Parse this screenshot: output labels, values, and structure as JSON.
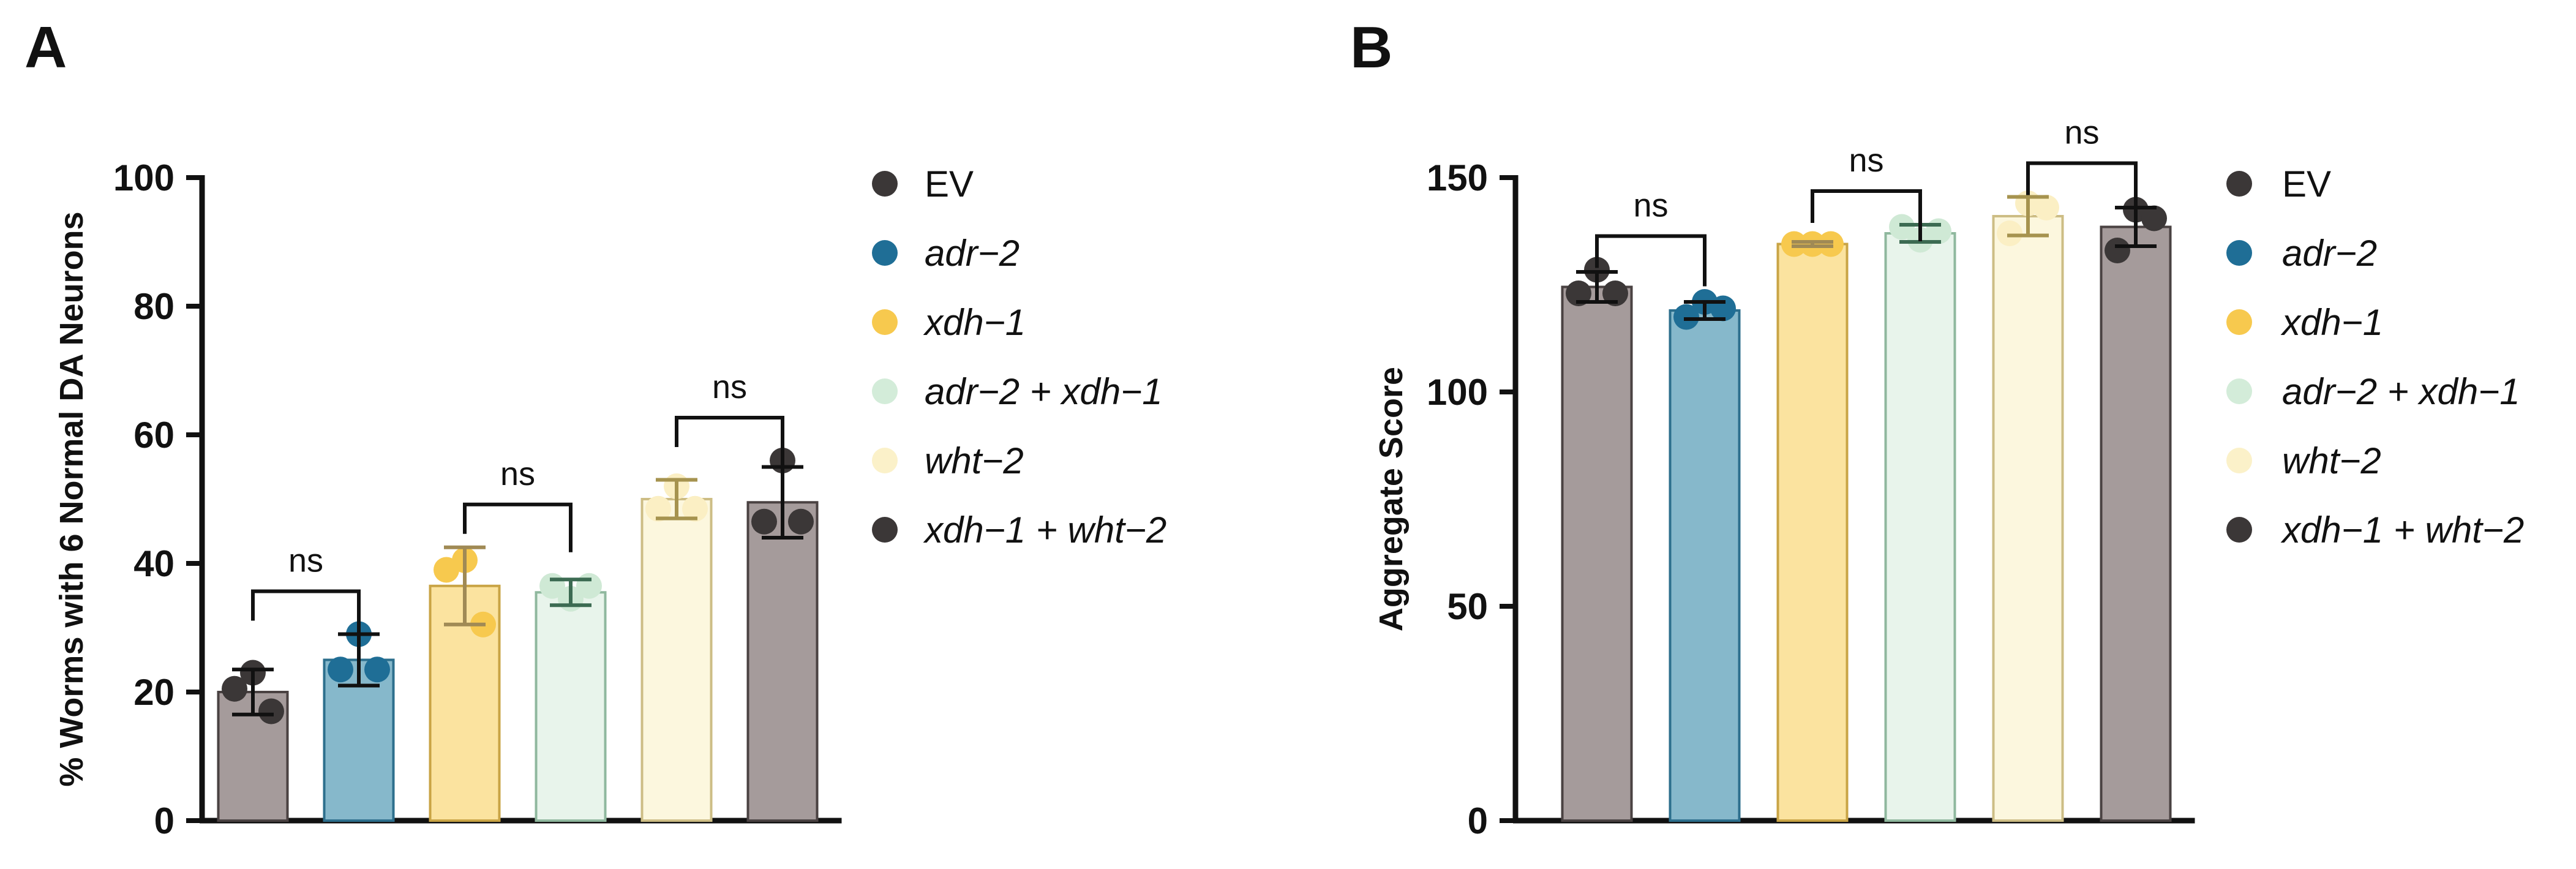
{
  "panels": {
    "A": {
      "letter": "A"
    },
    "B": {
      "letter": "B"
    }
  },
  "chart_data": [
    {
      "type": "bar",
      "panel": "A",
      "title": "",
      "xlabel": "",
      "ylabel": "% Worms with 6 Normal DA Neurons",
      "ylim": [
        0,
        100
      ],
      "yticks": [
        0,
        20,
        40,
        60,
        80,
        100
      ],
      "ytick_labels": [
        "0",
        "20",
        "40",
        "60",
        "80",
        "100"
      ],
      "categories": [
        "EV",
        "adr−2",
        "xdh−1",
        "adr−2 + xdh−1",
        "wht−2",
        "xdh−1 + wht−2"
      ],
      "values": [
        20,
        25,
        36.5,
        35.5,
        50,
        49.5
      ],
      "errors": [
        3.5,
        4,
        6,
        2,
        3,
        5.5
      ],
      "points": [
        [
          23,
          20.5,
          17
        ],
        [
          29,
          23.5,
          23.5
        ],
        [
          40.5,
          39,
          30.5
        ],
        [
          34.5,
          36.5,
          36.5
        ],
        [
          52,
          48.5,
          48.5
        ],
        [
          56,
          46.5,
          46.5
        ]
      ],
      "significance": [
        {
          "from": 0,
          "to": 1,
          "label": "ns"
        },
        {
          "from": 2,
          "to": 3,
          "label": "ns"
        },
        {
          "from": 4,
          "to": 5,
          "label": "ns"
        }
      ]
    },
    {
      "type": "bar",
      "panel": "B",
      "title": "",
      "xlabel": "",
      "ylabel": "Aggregate Score",
      "ylim": [
        0,
        150
      ],
      "yticks": [
        0,
        50,
        100,
        150
      ],
      "ytick_labels": [
        "0",
        "50",
        "100",
        "150"
      ],
      "categories": [
        "EV",
        "adr−2",
        "xdh−1",
        "adr−2 + xdh−1",
        "wht−2",
        "xdh−1 + wht−2"
      ],
      "values": [
        124.5,
        119,
        134.5,
        137,
        141,
        138.5
      ],
      "errors": [
        3.5,
        2,
        0.5,
        2,
        4.5,
        4.5
      ],
      "points": [
        [
          128.5,
          123,
          123
        ],
        [
          121,
          117.5,
          119.5
        ],
        [
          134.5,
          134.5,
          134.5
        ],
        [
          135.5,
          138.5,
          137.5
        ],
        [
          144,
          137,
          143
        ],
        [
          142.5,
          133,
          140.5
        ]
      ],
      "significance": [
        {
          "from": 0,
          "to": 1,
          "label": "ns"
        },
        {
          "from": 2,
          "to": 3,
          "label": "ns"
        },
        {
          "from": 4,
          "to": 5,
          "label": "ns"
        }
      ]
    }
  ],
  "legend": {
    "items": [
      {
        "label": "EV",
        "italic": false,
        "color": "#3b3737"
      },
      {
        "label": "adr−2",
        "italic": true,
        "color": "#1f6e96"
      },
      {
        "label": "xdh−1",
        "italic": true,
        "color": "#f7c94e"
      },
      {
        "label": "adr−2 + xdh−1",
        "italic": true,
        "color": "#d3ecd9"
      },
      {
        "label": "wht−2",
        "italic": true,
        "color": "#fbf1c9"
      },
      {
        "label": "xdh−1 + wht−2",
        "italic": true,
        "color": "#3b3737"
      }
    ]
  },
  "series_colors": {
    "fill": [
      "#a59b9b",
      "#86b8cb",
      "#fbe39f",
      "#e8f4eb",
      "#fcf7de",
      "#a59b9b"
    ],
    "stroke": [
      "#4a4242",
      "#2d6f8d",
      "#c9a445",
      "#8fb89e",
      "#cdbd85",
      "#4a4242"
    ],
    "dot": [
      "#3b3737",
      "#1f6e96",
      "#f7c94e",
      "#cfe9d5",
      "#fbefc4",
      "#3b3737"
    ],
    "errorbar": [
      "#111111",
      "#111111",
      "#a08a55",
      "#3c6b52",
      "#a6934f",
      "#111111"
    ]
  }
}
